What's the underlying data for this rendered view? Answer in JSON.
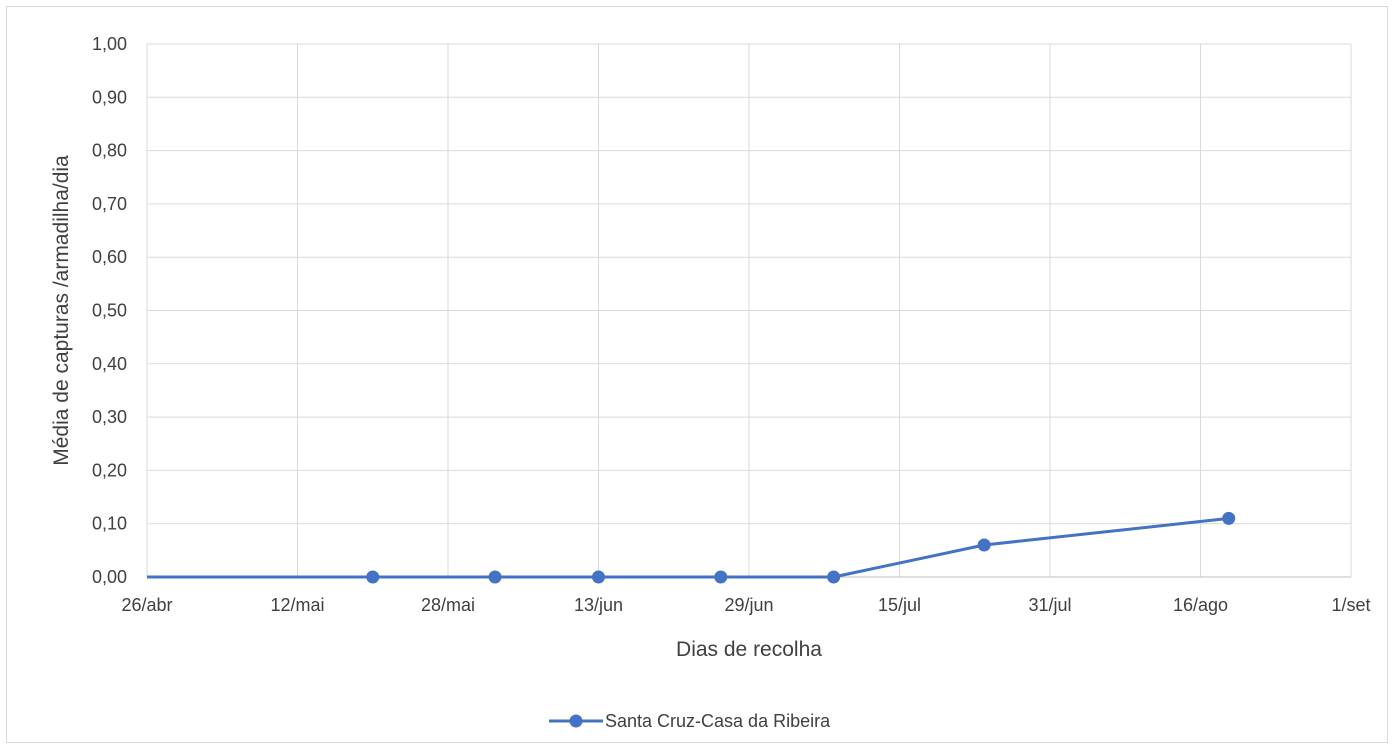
{
  "chart_data": {
    "type": "line",
    "title": "",
    "xlabel": "Dias de recolha",
    "ylabel": "Média de capturas /armadilha/dia",
    "x_axis_type": "date",
    "xlim": [
      "2023-04-26",
      "2023-09-01"
    ],
    "ylim": [
      0,
      1
    ],
    "x_ticks": [
      {
        "date": "2023-04-26",
        "label": "26/abr"
      },
      {
        "date": "2023-05-12",
        "label": "12/mai"
      },
      {
        "date": "2023-05-28",
        "label": "28/mai"
      },
      {
        "date": "2023-06-13",
        "label": "13/jun"
      },
      {
        "date": "2023-06-29",
        "label": "29/jun"
      },
      {
        "date": "2023-07-15",
        "label": "15/jul"
      },
      {
        "date": "2023-07-31",
        "label": "31/jul"
      },
      {
        "date": "2023-08-16",
        "label": "16/ago"
      },
      {
        "date": "2023-09-01",
        "label": "1/set"
      }
    ],
    "y_ticks": [
      {
        "value": 0.0,
        "label": "0,00"
      },
      {
        "value": 0.1,
        "label": "0,10"
      },
      {
        "value": 0.2,
        "label": "0,20"
      },
      {
        "value": 0.3,
        "label": "0,30"
      },
      {
        "value": 0.4,
        "label": "0,40"
      },
      {
        "value": 0.5,
        "label": "0,50"
      },
      {
        "value": 0.6,
        "label": "0,60"
      },
      {
        "value": 0.7,
        "label": "0,70"
      },
      {
        "value": 0.8,
        "label": "0,80"
      },
      {
        "value": 0.9,
        "label": "0,90"
      },
      {
        "value": 1.0,
        "label": "1,00"
      }
    ],
    "grid": true,
    "legend_position": "bottom",
    "series": [
      {
        "name": "Santa Cruz-Casa da Ribeira",
        "color": "#4472c4",
        "line_start": {
          "x": "2023-04-26",
          "y": 0.0
        },
        "points": [
          {
            "x": "2023-05-20",
            "y": 0.0
          },
          {
            "x": "2023-06-02",
            "y": 0.0
          },
          {
            "x": "2023-06-13",
            "y": 0.0
          },
          {
            "x": "2023-06-26",
            "y": 0.0
          },
          {
            "x": "2023-07-08",
            "y": 0.0
          },
          {
            "x": "2023-07-24",
            "y": 0.06
          },
          {
            "x": "2023-08-19",
            "y": 0.11
          }
        ]
      }
    ]
  }
}
